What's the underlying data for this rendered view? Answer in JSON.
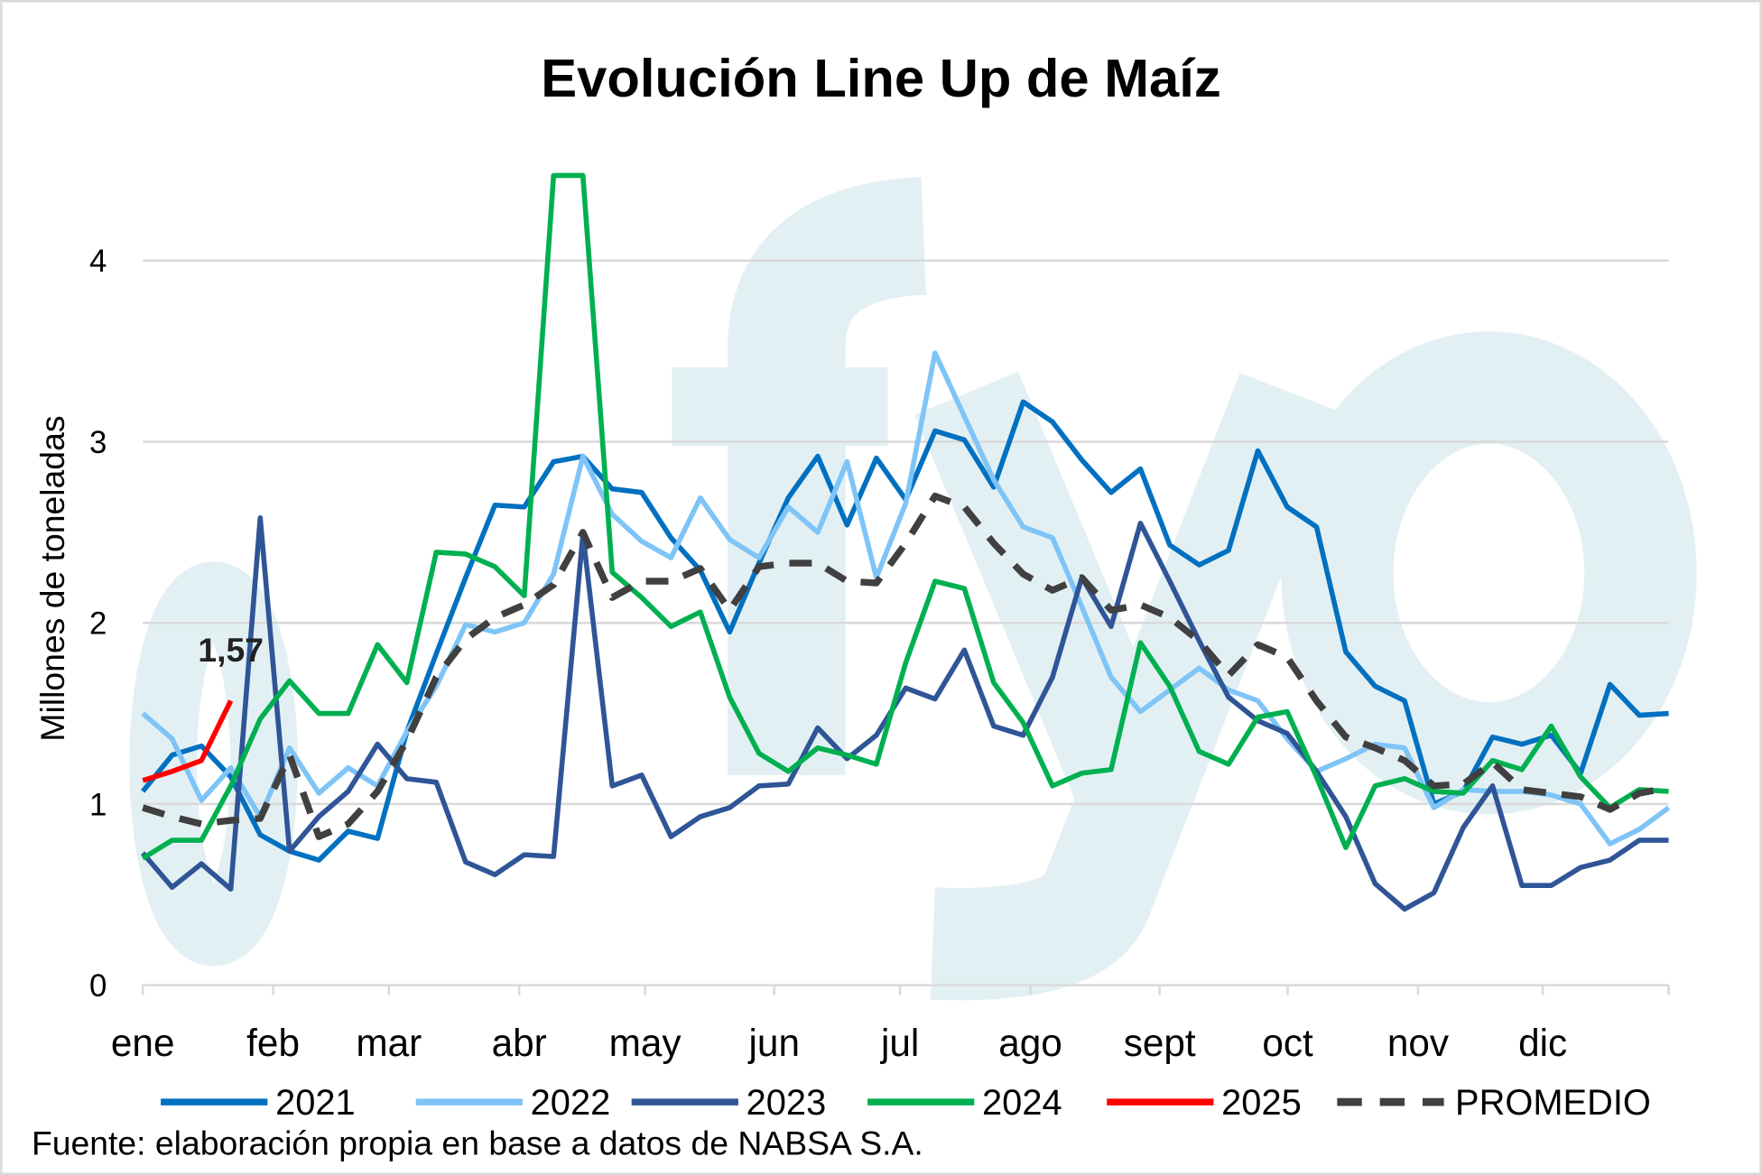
{
  "chart_data": {
    "type": "line",
    "title": "Evolución Line Up de Maíz",
    "ylabel": "Millones de toneladas",
    "xlabel": "",
    "ylim": [
      0,
      4.6
    ],
    "yticks": [
      "0",
      "1",
      "2",
      "3",
      "4"
    ],
    "ytick_values": [
      0,
      1,
      2,
      3,
      4
    ],
    "months": [
      "ene",
      "feb",
      "mar",
      "abr",
      "may",
      "jun",
      "jul",
      "ago",
      "sept",
      "oct",
      "nov",
      "dic"
    ],
    "x_unit": "week",
    "grid": true,
    "legend_position": "bottom",
    "watermark": "fyo",
    "annotation": {
      "text": "1,57",
      "series": "2025",
      "week": 4
    },
    "series": [
      {
        "name": "2021",
        "color": "#0070c0",
        "dashed": false,
        "values": [
          1.07,
          1.27,
          1.32,
          1.15,
          0.83,
          0.74,
          0.69,
          0.85,
          0.81,
          1.4,
          1.83,
          2.25,
          2.65,
          2.64,
          2.89,
          2.92,
          2.74,
          2.72,
          2.47,
          2.29,
          1.95,
          2.33,
          2.69,
          2.92,
          2.54,
          2.91,
          2.68,
          3.06,
          3.01,
          2.75,
          3.22,
          3.11,
          2.9,
          2.72,
          2.85,
          2.43,
          2.32,
          2.4,
          2.95,
          2.64,
          2.53,
          1.84,
          1.65,
          1.57,
          1.0,
          1.07,
          1.37,
          1.33,
          1.38,
          1.17,
          1.66,
          1.49,
          1.5
        ]
      },
      {
        "name": "2022",
        "color": "#7fc4f7",
        "dashed": false,
        "values": [
          1.5,
          1.36,
          1.02,
          1.2,
          0.93,
          1.31,
          1.06,
          1.2,
          1.1,
          1.4,
          1.65,
          1.99,
          1.95,
          2.0,
          2.27,
          2.92,
          2.6,
          2.45,
          2.36,
          2.69,
          2.46,
          2.36,
          2.64,
          2.5,
          2.89,
          2.25,
          2.66,
          3.49,
          3.14,
          2.79,
          2.53,
          2.47,
          2.09,
          1.7,
          1.51,
          1.63,
          1.75,
          1.63,
          1.57,
          1.36,
          1.18,
          1.25,
          1.33,
          1.31,
          0.98,
          1.08,
          1.07,
          1.07,
          1.05,
          1.0,
          0.78,
          0.86,
          0.98
        ]
      },
      {
        "name": "2023",
        "color": "#2f5597",
        "dashed": false,
        "values": [
          0.73,
          0.54,
          0.67,
          0.53,
          2.58,
          0.74,
          0.93,
          1.07,
          1.33,
          1.14,
          1.12,
          0.68,
          0.61,
          0.72,
          0.71,
          2.49,
          1.1,
          1.16,
          0.82,
          0.93,
          0.98,
          1.1,
          1.11,
          1.42,
          1.25,
          1.38,
          1.64,
          1.58,
          1.85,
          1.43,
          1.38,
          1.7,
          2.25,
          1.98,
          2.55,
          2.23,
          1.9,
          1.59,
          1.46,
          1.39,
          1.18,
          0.93,
          0.56,
          0.42,
          0.51,
          0.87,
          1.1,
          0.55,
          0.55,
          0.65,
          0.69,
          0.8,
          0.8
        ]
      },
      {
        "name": "2024",
        "color": "#00b050",
        "dashed": false,
        "values": [
          0.7,
          0.8,
          0.8,
          1.1,
          1.47,
          1.68,
          1.5,
          1.5,
          1.88,
          1.67,
          2.39,
          2.38,
          2.31,
          2.15,
          4.47,
          4.47,
          2.28,
          2.14,
          1.98,
          2.06,
          1.59,
          1.28,
          1.18,
          1.31,
          1.27,
          1.22,
          1.78,
          2.23,
          2.19,
          1.67,
          1.45,
          1.1,
          1.17,
          1.19,
          1.89,
          1.65,
          1.29,
          1.22,
          1.48,
          1.51,
          1.15,
          0.76,
          1.1,
          1.14,
          1.07,
          1.06,
          1.24,
          1.19,
          1.43,
          1.15,
          0.98,
          1.08,
          1.07
        ]
      },
      {
        "name": "2025",
        "color": "#ff0000",
        "dashed": false,
        "values": [
          1.13,
          1.18,
          1.24,
          1.57
        ]
      },
      {
        "name": "PROMEDIO",
        "color": "#404040",
        "dashed": true,
        "values": [
          0.98,
          0.93,
          0.89,
          0.91,
          0.92,
          1.27,
          0.82,
          0.89,
          1.07,
          1.35,
          1.7,
          1.91,
          2.03,
          2.1,
          2.21,
          2.5,
          2.14,
          2.23,
          2.23,
          2.3,
          2.07,
          2.31,
          2.33,
          2.33,
          2.23,
          2.22,
          2.44,
          2.7,
          2.64,
          2.44,
          2.27,
          2.18,
          2.25,
          2.07,
          2.1,
          2.03,
          1.9,
          1.71,
          1.88,
          1.81,
          1.57,
          1.37,
          1.31,
          1.24,
          1.1,
          1.11,
          1.23,
          1.08,
          1.06,
          1.04,
          0.97,
          1.06,
          1.09
        ]
      }
    ]
  },
  "source": "Fuente: elaboración propia en base a datos de NABSA S.A."
}
